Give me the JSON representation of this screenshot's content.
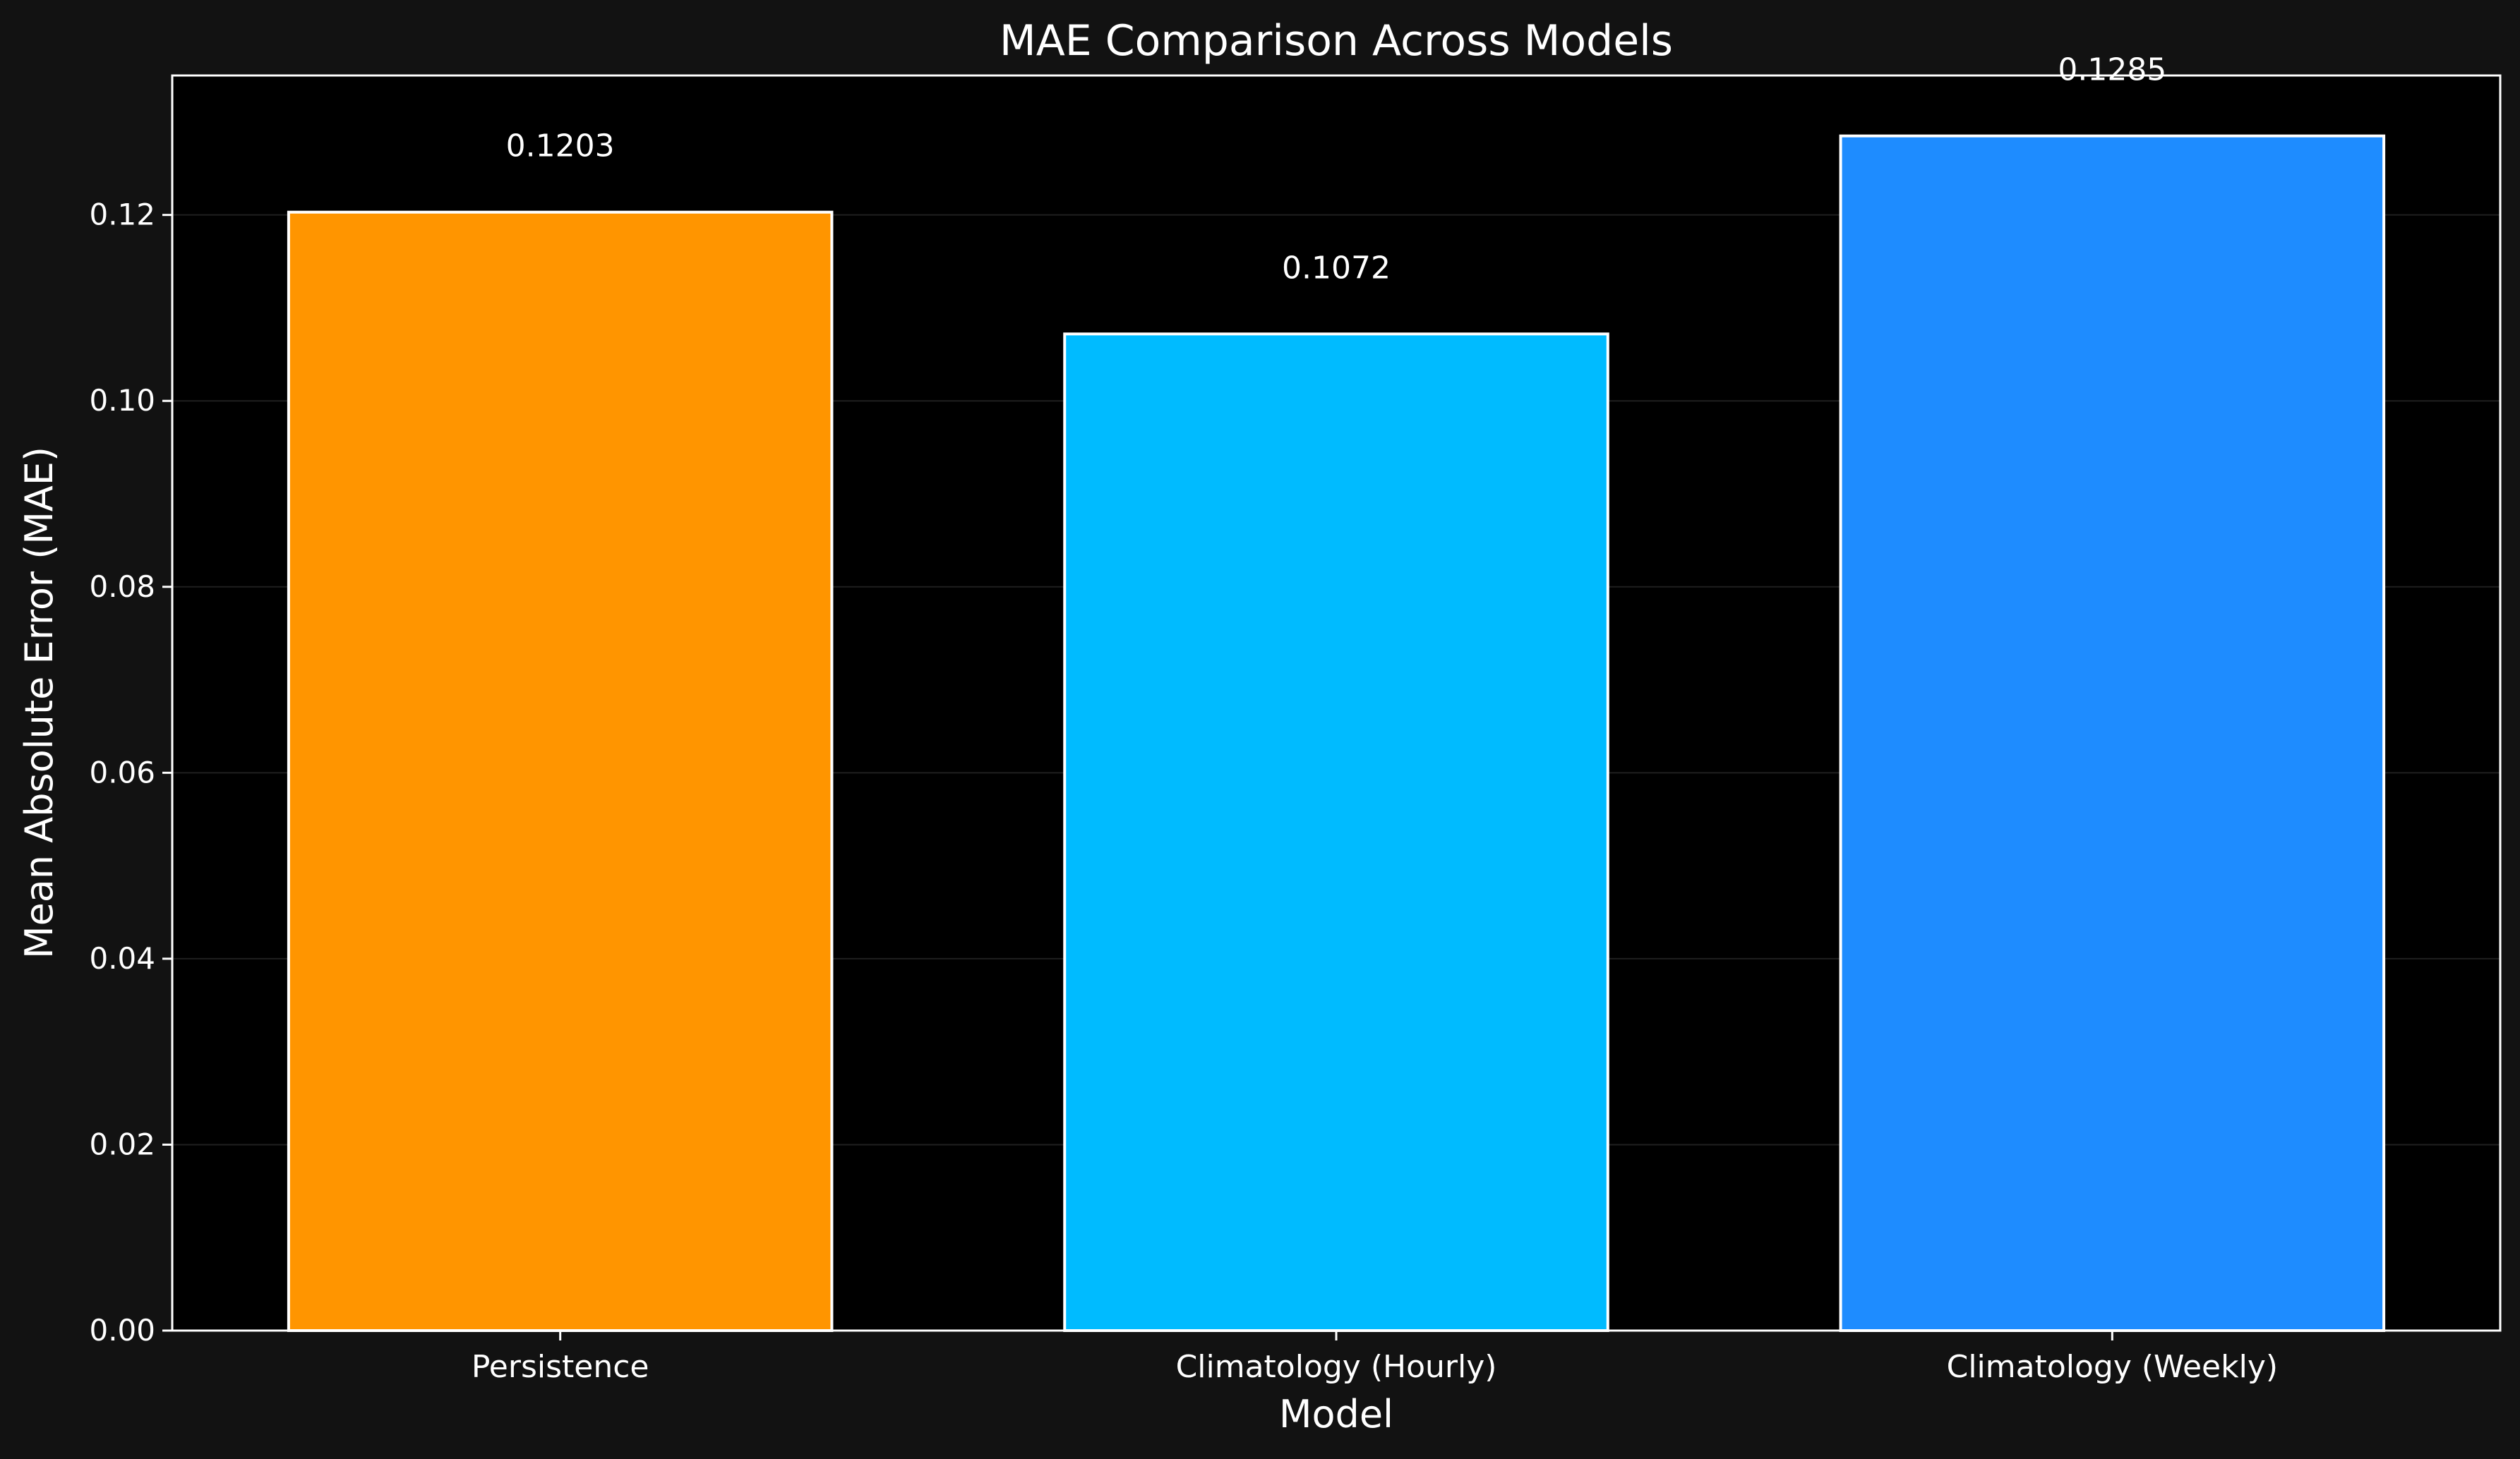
{
  "chart_data": {
    "type": "bar",
    "title": "MAE Comparison Across Models",
    "xlabel": "Model",
    "ylabel": "Mean Absolute Error (MAE)",
    "categories": [
      "Persistence",
      "Climatology (Hourly)",
      "Climatology (Weekly)"
    ],
    "values": [
      0.1203,
      0.1072,
      0.1285
    ],
    "value_labels": [
      "0.1203",
      "0.1072",
      "0.1285"
    ],
    "colors": [
      "#ff9500",
      "#00bbff",
      "#1e8cff"
    ],
    "ylim": [
      0,
      0.135
    ],
    "yticks": [
      0,
      0.02,
      0.04,
      0.06,
      0.08,
      0.1,
      0.12
    ],
    "ytick_labels": [
      "0.00",
      "0.02",
      "0.04",
      "0.06",
      "0.08",
      "0.10",
      "0.12"
    ],
    "grid": "horizontal",
    "background_color": "#121212",
    "plot_background_color": "#000000",
    "bar_edge_color": "#ffffff"
  }
}
